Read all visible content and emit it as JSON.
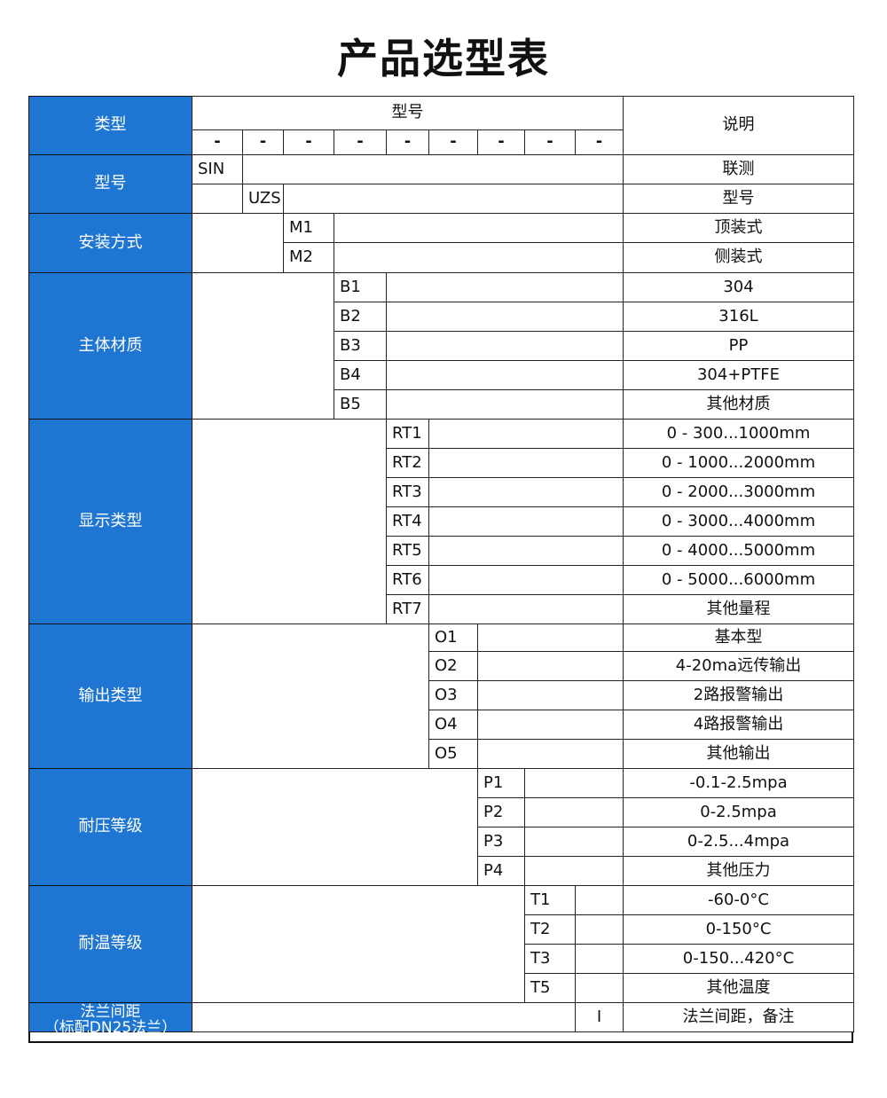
{
  "title": "产品选型表",
  "colors": {
    "header_blue": "#1f76d2"
  },
  "header": {
    "type_label": "类型",
    "model_label": "型号",
    "desc_label": "说明",
    "dashes": [
      "-",
      "-",
      "-",
      "-",
      "-",
      "-",
      "-",
      "-",
      "-"
    ]
  },
  "groups": [
    {
      "label": "型号",
      "col": 0,
      "rows": [
        {
          "code": "SIN",
          "desc": "联测"
        }
      ]
    },
    {
      "label": "",
      "col": 1,
      "rows": [
        {
          "code": "UZS",
          "desc": "型号"
        }
      ],
      "merge_with_prev": true
    },
    {
      "label": "安装方式",
      "col": 2,
      "rows": [
        {
          "code": "M1",
          "desc": "顶装式"
        },
        {
          "code": "M2",
          "desc": "侧装式"
        }
      ]
    },
    {
      "label": "主体材质",
      "col": 3,
      "rows": [
        {
          "code": "B1",
          "desc": "304"
        },
        {
          "code": "B2",
          "desc": "316L"
        },
        {
          "code": "B3",
          "desc": "PP"
        },
        {
          "code": "B4",
          "desc": "304+PTFE"
        },
        {
          "code": "B5",
          "desc": "其他材质"
        }
      ]
    },
    {
      "label": "显示类型",
      "col": 4,
      "rows": [
        {
          "code": "RT1",
          "desc": "0 - 300...1000mm"
        },
        {
          "code": "RT2",
          "desc": "0 - 1000...2000mm"
        },
        {
          "code": "RT3",
          "desc": "0 - 2000...3000mm"
        },
        {
          "code": "RT4",
          "desc": "0 - 3000...4000mm"
        },
        {
          "code": "RT5",
          "desc": "0 - 4000...5000mm"
        },
        {
          "code": "RT6",
          "desc": "0 - 5000...6000mm"
        },
        {
          "code": "RT7",
          "desc": "其他量程"
        }
      ]
    },
    {
      "label": "输出类型",
      "col": 5,
      "rows": [
        {
          "code": "O1",
          "desc": "基本型"
        },
        {
          "code": "O2",
          "desc": "4-20ma远传输出"
        },
        {
          "code": "O3",
          "desc": "2路报警输出"
        },
        {
          "code": "O4",
          "desc": "4路报警输出"
        },
        {
          "code": "O5",
          "desc": "其他输出"
        }
      ]
    },
    {
      "label": "耐压等级",
      "col": 6,
      "rows": [
        {
          "code": "P1",
          "desc": "-0.1-2.5mpa"
        },
        {
          "code": "P2",
          "desc": "0-2.5mpa"
        },
        {
          "code": "P3",
          "desc": "0-2.5...4mpa"
        },
        {
          "code": "P4",
          "desc": "其他压力"
        }
      ]
    },
    {
      "label": "耐温等级",
      "col": 7,
      "rows": [
        {
          "code": "T1",
          "desc": "-60-0°C"
        },
        {
          "code": "T2",
          "desc": "0-150°C"
        },
        {
          "code": "T3",
          "desc": "0-150...420°C"
        },
        {
          "code": "T5",
          "desc": "其他温度"
        }
      ]
    },
    {
      "label": "法兰间距\n（标配DN25法兰）",
      "col": 8,
      "rows": [
        {
          "code": "I",
          "desc": "法兰间距，备注"
        }
      ]
    }
  ]
}
